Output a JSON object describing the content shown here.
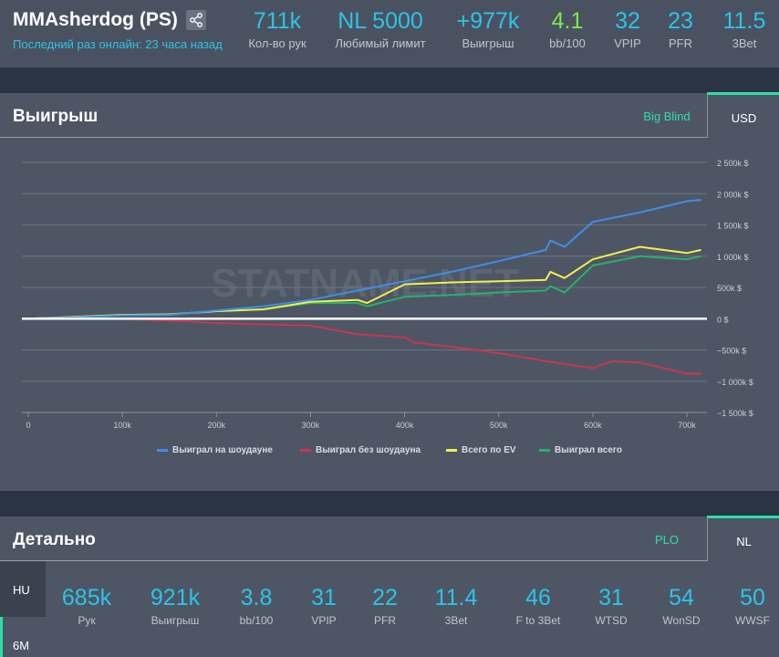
{
  "header": {
    "player_name": "MMAsherdog (PS)",
    "last_online": "Последний раз онлайн: 23 часа назад",
    "stats": [
      {
        "value": "711k",
        "label": "Кол-во рук"
      },
      {
        "value": "NL 5000",
        "label": "Любимый лимит"
      },
      {
        "value": "+977k",
        "label": "Выигрыш"
      },
      {
        "value": "4.1",
        "label": "bb/100",
        "color": "#7de84a"
      },
      {
        "value": "32",
        "label": "VPIP"
      },
      {
        "value": "23",
        "label": "PFR"
      },
      {
        "value": "11.5",
        "label": "3Bet"
      }
    ]
  },
  "winnings_panel": {
    "title": "Выигрыш",
    "tabs": [
      {
        "label": "Big Blind",
        "active": false
      },
      {
        "label": "USD",
        "active": true
      }
    ]
  },
  "watermark": "STATNAME.NET",
  "chart_data": {
    "type": "line",
    "x_ticks": [
      "0",
      "100k",
      "200k",
      "300k",
      "400k",
      "500k",
      "600k",
      "700k"
    ],
    "y_ticks": [
      "2 500k $",
      "2 000k $",
      "1 500k $",
      "1 000k $",
      "500k $",
      "0 $",
      "−500k $",
      "−1 000k $",
      "−1 500k $"
    ],
    "xlim": [
      0,
      720000
    ],
    "ylim": [
      -1500000,
      2500000
    ],
    "grid": true,
    "legend_position": "bottom",
    "series": [
      {
        "name": "Выиграл на шоудауне",
        "color": "#3d8fe8",
        "x": [
          0,
          50000,
          100000,
          150000,
          200000,
          250000,
          300000,
          350000,
          400000,
          450000,
          500000,
          550000,
          555000,
          570000,
          600000,
          650000,
          700000,
          715000
        ],
        "y": [
          0,
          20000,
          50000,
          60000,
          130000,
          200000,
          300000,
          450000,
          600000,
          750000,
          920000,
          1100000,
          1250000,
          1150000,
          1550000,
          1700000,
          1880000,
          1900000
        ]
      },
      {
        "name": "Выиграл без шоудауна",
        "color": "#c8364e",
        "x": [
          0,
          50000,
          100000,
          150000,
          200000,
          250000,
          300000,
          350000,
          400000,
          410000,
          450000,
          500000,
          550000,
          600000,
          620000,
          650000,
          700000,
          715000
        ],
        "y": [
          0,
          10000,
          0,
          -30000,
          -70000,
          -90000,
          -110000,
          -250000,
          -300000,
          -380000,
          -450000,
          -550000,
          -680000,
          -790000,
          -680000,
          -700000,
          -880000,
          -880000
        ]
      },
      {
        "name": "Всего по EV",
        "color": "#f2f04a",
        "x": [
          0,
          50000,
          100000,
          150000,
          200000,
          250000,
          300000,
          350000,
          360000,
          400000,
          450000,
          500000,
          550000,
          555000,
          570000,
          600000,
          650000,
          700000,
          715000
        ],
        "y": [
          0,
          30000,
          60000,
          70000,
          120000,
          150000,
          270000,
          300000,
          250000,
          550000,
          580000,
          600000,
          620000,
          750000,
          650000,
          950000,
          1150000,
          1050000,
          1100000
        ]
      },
      {
        "name": "Выиграл всего",
        "color": "#24b36a",
        "x": [
          0,
          50000,
          100000,
          150000,
          200000,
          250000,
          300000,
          350000,
          360000,
          400000,
          450000,
          500000,
          550000,
          555000,
          570000,
          600000,
          650000,
          700000,
          715000
        ],
        "y": [
          0,
          30000,
          60000,
          70000,
          120000,
          150000,
          250000,
          250000,
          200000,
          350000,
          380000,
          420000,
          450000,
          520000,
          420000,
          850000,
          1000000,
          950000,
          1000000
        ]
      }
    ]
  },
  "details_panel": {
    "title": "Детально",
    "tabs": [
      {
        "label": "PLO",
        "active": false
      },
      {
        "label": "NL",
        "active": true
      }
    ],
    "side_tabs": [
      "HU",
      "6M"
    ],
    "stats": [
      {
        "value": "685k",
        "label": "Рук"
      },
      {
        "value": "921k",
        "label": "Выигрыш"
      },
      {
        "value": "3.8",
        "label": "bb/100"
      },
      {
        "value": "31",
        "label": "VPIP"
      },
      {
        "value": "22",
        "label": "PFR"
      },
      {
        "value": "11.4",
        "label": "3Bet"
      },
      {
        "value": "46",
        "label": "F to 3Bet"
      },
      {
        "value": "31",
        "label": "WTSD"
      },
      {
        "value": "54",
        "label": "WonSD"
      },
      {
        "value": "50",
        "label": "WWSF"
      }
    ]
  }
}
